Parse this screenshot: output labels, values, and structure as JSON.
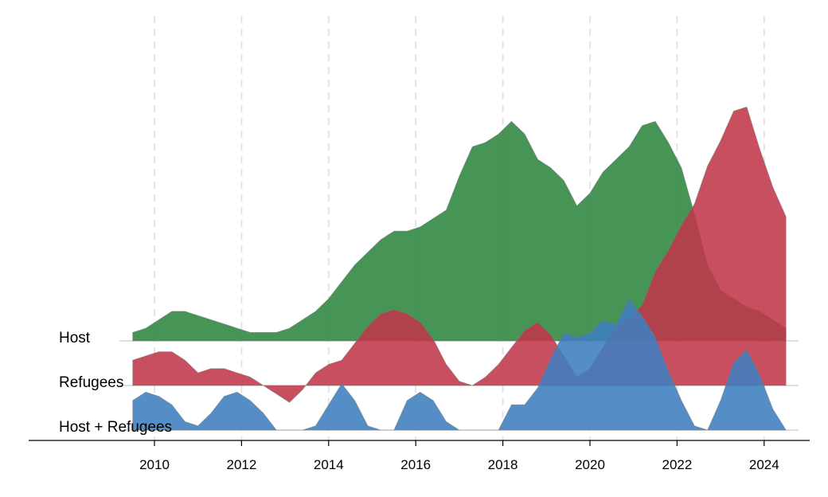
{
  "chart_data": {
    "type": "area",
    "subtype": "ridgeline",
    "title": "",
    "xlabel": "",
    "ylabel": "",
    "xlim": [
      2009.0,
      2025.5
    ],
    "x_ticks": [
      2010,
      2012,
      2014,
      2016,
      2018,
      2020,
      2022,
      2024
    ],
    "grid": "vertical dashed",
    "legend": "none",
    "x": [
      2009.5,
      2009.8,
      2010.1,
      2010.4,
      2010.7,
      2011.0,
      2011.3,
      2011.6,
      2011.9,
      2012.2,
      2012.5,
      2012.8,
      2013.1,
      2013.4,
      2013.7,
      2014.0,
      2014.3,
      2014.6,
      2014.9,
      2015.2,
      2015.5,
      2015.8,
      2016.1,
      2016.4,
      2016.7,
      2017.0,
      2017.3,
      2017.6,
      2017.9,
      2018.2,
      2018.5,
      2018.8,
      2019.1,
      2019.4,
      2019.7,
      2020.0,
      2020.3,
      2020.6,
      2020.9,
      2021.2,
      2021.5,
      2021.8,
      2022.1,
      2022.4,
      2022.7,
      2023.0,
      2023.3,
      2023.6,
      2023.9,
      2024.2,
      2024.5
    ],
    "series": [
      {
        "name": "Host",
        "color": "#2e8540",
        "values": [
          0.02,
          0.03,
          0.05,
          0.07,
          0.07,
          0.06,
          0.05,
          0.04,
          0.03,
          0.02,
          0.02,
          0.02,
          0.03,
          0.05,
          0.07,
          0.1,
          0.14,
          0.18,
          0.21,
          0.24,
          0.26,
          0.26,
          0.27,
          0.29,
          0.31,
          0.39,
          0.46,
          0.47,
          0.49,
          0.52,
          0.49,
          0.43,
          0.41,
          0.38,
          0.32,
          0.35,
          0.4,
          0.43,
          0.46,
          0.51,
          0.52,
          0.47,
          0.41,
          0.3,
          0.18,
          0.12,
          0.1,
          0.08,
          0.07,
          0.05,
          0.03
        ]
      },
      {
        "name": "Refugees",
        "color": "#c0374a",
        "values": [
          0.06,
          0.07,
          0.08,
          0.08,
          0.06,
          0.03,
          0.04,
          0.04,
          0.03,
          0.02,
          0.0,
          -0.02,
          -0.04,
          -0.01,
          0.03,
          0.05,
          0.06,
          0.1,
          0.14,
          0.17,
          0.18,
          0.17,
          0.15,
          0.11,
          0.05,
          0.01,
          0.0,
          0.02,
          0.05,
          0.09,
          0.13,
          0.15,
          0.12,
          0.07,
          0.02,
          0.04,
          0.09,
          0.14,
          0.16,
          0.19,
          0.27,
          0.32,
          0.38,
          0.43,
          0.52,
          0.58,
          0.65,
          0.66,
          0.56,
          0.47,
          0.4
        ]
      },
      {
        "name": "Host + Refugees",
        "color": "#3d7ebf",
        "values": [
          0.07,
          0.09,
          0.08,
          0.06,
          0.02,
          0.01,
          0.04,
          0.08,
          0.09,
          0.07,
          0.04,
          -0.01,
          -0.04,
          -0.06,
          0.01,
          0.06,
          0.11,
          0.07,
          0.01,
          0.0,
          -0.01,
          0.07,
          0.09,
          0.07,
          0.02,
          -0.06,
          -0.11,
          -0.11,
          -0.03,
          0.06,
          0.06,
          0.1,
          0.17,
          0.23,
          0.22,
          0.23,
          0.26,
          0.25,
          0.31,
          0.27,
          0.22,
          0.14,
          0.07,
          0.01,
          0.0,
          0.07,
          0.16,
          0.19,
          0.13,
          0.05,
          -0.01
        ]
      }
    ]
  }
}
